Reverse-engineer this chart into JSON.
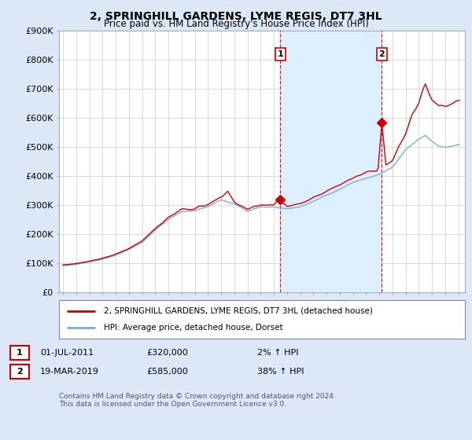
{
  "title": "2, SPRINGHILL GARDENS, LYME REGIS, DT7 3HL",
  "subtitle": "Price paid vs. HM Land Registry's House Price Index (HPI)",
  "ylim": [
    0,
    900000
  ],
  "yticks": [
    0,
    100000,
    200000,
    300000,
    400000,
    500000,
    600000,
    700000,
    800000,
    900000
  ],
  "ytick_labels": [
    "£0",
    "£100K",
    "£200K",
    "£300K",
    "£400K",
    "£500K",
    "£600K",
    "£700K",
    "£800K",
    "£900K"
  ],
  "background_color": "#dce8f8",
  "plot_bg_color": "#ffffff",
  "grid_color": "#cccccc",
  "red_line_color": "#cc0000",
  "blue_line_color": "#7aadd4",
  "shade_color": "#ddeeff",
  "sale1_date": "01-JUL-2011",
  "sale1_price": 320000,
  "sale1_pct": "2%",
  "sale2_date": "19-MAR-2019",
  "sale2_price": 585000,
  "sale2_pct": "38%",
  "legend_line1": "2, SPRINGHILL GARDENS, LYME REGIS, DT7 3HL (detached house)",
  "legend_line2": "HPI: Average price, detached house, Dorset",
  "footer": "Contains HM Land Registry data © Crown copyright and database right 2024.\nThis data is licensed under the Open Government Licence v3.0.",
  "sale1_x": 2011.5,
  "sale2_x": 2019.2,
  "xlim_left": 1994.7,
  "xlim_right": 2025.5
}
